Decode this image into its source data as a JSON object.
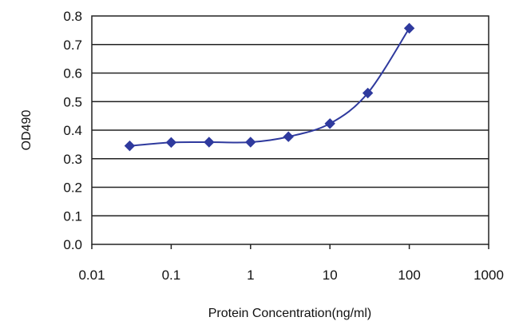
{
  "chart_data": {
    "type": "line",
    "title": "",
    "xlabel": "Protein Concentration(ng/ml)",
    "ylabel": "OD490",
    "x_scale": "log",
    "xlim": [
      0.01,
      1000
    ],
    "ylim": [
      0.0,
      0.8
    ],
    "x_ticks": [
      "0.01",
      "0.1",
      "1",
      "10",
      "100",
      "1000"
    ],
    "y_ticks": [
      "0.0",
      "0.1",
      "0.2",
      "0.3",
      "0.4",
      "0.5",
      "0.6",
      "0.7",
      "0.8"
    ],
    "grid": "horizontal",
    "legend": "none",
    "series": [
      {
        "color": "#2f3a9e",
        "marker": "diamond",
        "x": [
          0.03,
          0.1,
          0.3,
          1,
          3,
          10,
          30,
          100
        ],
        "y": [
          0.345,
          0.357,
          0.358,
          0.358,
          0.377,
          0.423,
          0.53,
          0.757
        ]
      }
    ]
  }
}
